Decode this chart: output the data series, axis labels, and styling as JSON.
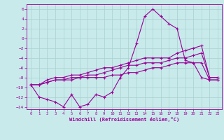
{
  "xlabel": "Windchill (Refroidissement éolien,°C)",
  "bg_color": "#c8eaea",
  "grid_color": "#aacfcf",
  "line_color": "#990099",
  "xlim": [
    -0.5,
    23.5
  ],
  "ylim": [
    -14.5,
    7
  ],
  "yticks": [
    -14,
    -12,
    -10,
    -8,
    -6,
    -4,
    -2,
    0,
    2,
    4,
    6
  ],
  "xticks": [
    0,
    1,
    2,
    3,
    4,
    5,
    6,
    7,
    8,
    9,
    10,
    11,
    12,
    13,
    14,
    15,
    16,
    17,
    18,
    19,
    20,
    21,
    22,
    23
  ],
  "series1_x": [
    0,
    1,
    2,
    3,
    4,
    5,
    6,
    7,
    8,
    9,
    10,
    11,
    12,
    13,
    14,
    15,
    16,
    17,
    18,
    19,
    20,
    21,
    22,
    23
  ],
  "series1_y": [
    -9.5,
    -12,
    -12.5,
    -13,
    -14,
    -11.5,
    -14,
    -13.5,
    -11.5,
    -12,
    -11,
    -8,
    -6,
    -1,
    4.5,
    6,
    4.5,
    3,
    2,
    -4.5,
    -5,
    -8,
    -8.5,
    -8.5
  ],
  "series2_x": [
    0,
    1,
    2,
    3,
    4,
    5,
    6,
    7,
    8,
    9,
    10,
    11,
    12,
    13,
    14,
    15,
    16,
    17,
    18,
    19,
    20,
    21,
    22,
    23
  ],
  "series2_y": [
    -9.5,
    -9.5,
    -9,
    -8.5,
    -8.5,
    -8.5,
    -8,
    -8,
    -8,
    -8,
    -7.5,
    -7.5,
    -7,
    -7,
    -6.5,
    -6,
    -6,
    -5.5,
    -5,
    -5,
    -5,
    -5,
    -8.5,
    -8.5
  ],
  "series3_x": [
    0,
    1,
    2,
    3,
    4,
    5,
    6,
    7,
    8,
    9,
    10,
    11,
    12,
    13,
    14,
    15,
    16,
    17,
    18,
    19,
    20,
    21,
    22,
    23
  ],
  "series3_y": [
    -9.5,
    -9.5,
    -9,
    -8.5,
    -8.5,
    -8,
    -8,
    -7.5,
    -7.5,
    -7,
    -6.5,
    -6,
    -5.5,
    -5.5,
    -5,
    -5,
    -5,
    -4.5,
    -4,
    -4,
    -3.5,
    -3,
    -8,
    -8
  ],
  "series4_x": [
    0,
    1,
    2,
    3,
    4,
    5,
    6,
    7,
    8,
    9,
    10,
    11,
    12,
    13,
    14,
    15,
    16,
    17,
    18,
    19,
    20,
    21,
    22,
    23
  ],
  "series4_y": [
    -9.5,
    -9.5,
    -8.5,
    -8,
    -8,
    -7.5,
    -7.5,
    -7,
    -6.5,
    -6,
    -6,
    -5.5,
    -5,
    -4.5,
    -4,
    -4,
    -4,
    -4,
    -3,
    -2.5,
    -2,
    -1.5,
    -8,
    -8
  ]
}
